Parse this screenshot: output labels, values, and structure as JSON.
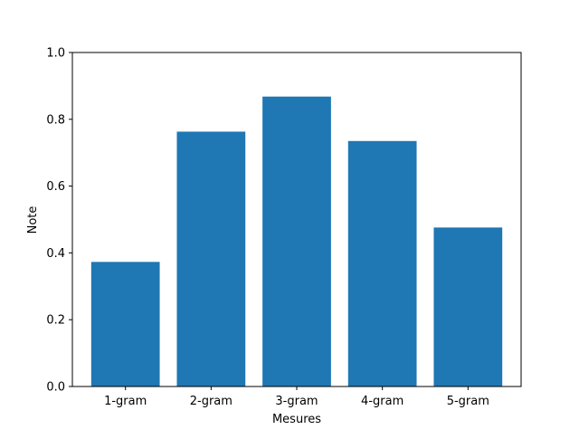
{
  "chart_data": {
    "type": "bar",
    "title": "",
    "xlabel": "Mesures",
    "ylabel": "Note",
    "categories": [
      "1-gram",
      "2-gram",
      "3-gram",
      "4-gram",
      "5-gram"
    ],
    "values": [
      0.373,
      0.763,
      0.868,
      0.735,
      0.476
    ],
    "ylim": [
      0,
      1.0
    ],
    "yticks": [
      0.0,
      0.2,
      0.4,
      0.6,
      0.8,
      1.0
    ],
    "ytick_labels": [
      "0.0",
      "0.2",
      "0.4",
      "0.6",
      "0.8",
      "1.0"
    ],
    "grid": false,
    "bar_color": "#1f77b4"
  }
}
